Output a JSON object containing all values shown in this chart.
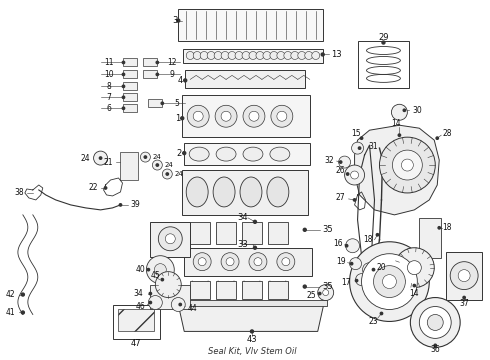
{
  "bg_color": "#ffffff",
  "lc": "#333333",
  "bottom_label": "Seal Kit, Vlv Stem Oil",
  "figsize": [
    4.9,
    3.6
  ],
  "dpi": 100
}
